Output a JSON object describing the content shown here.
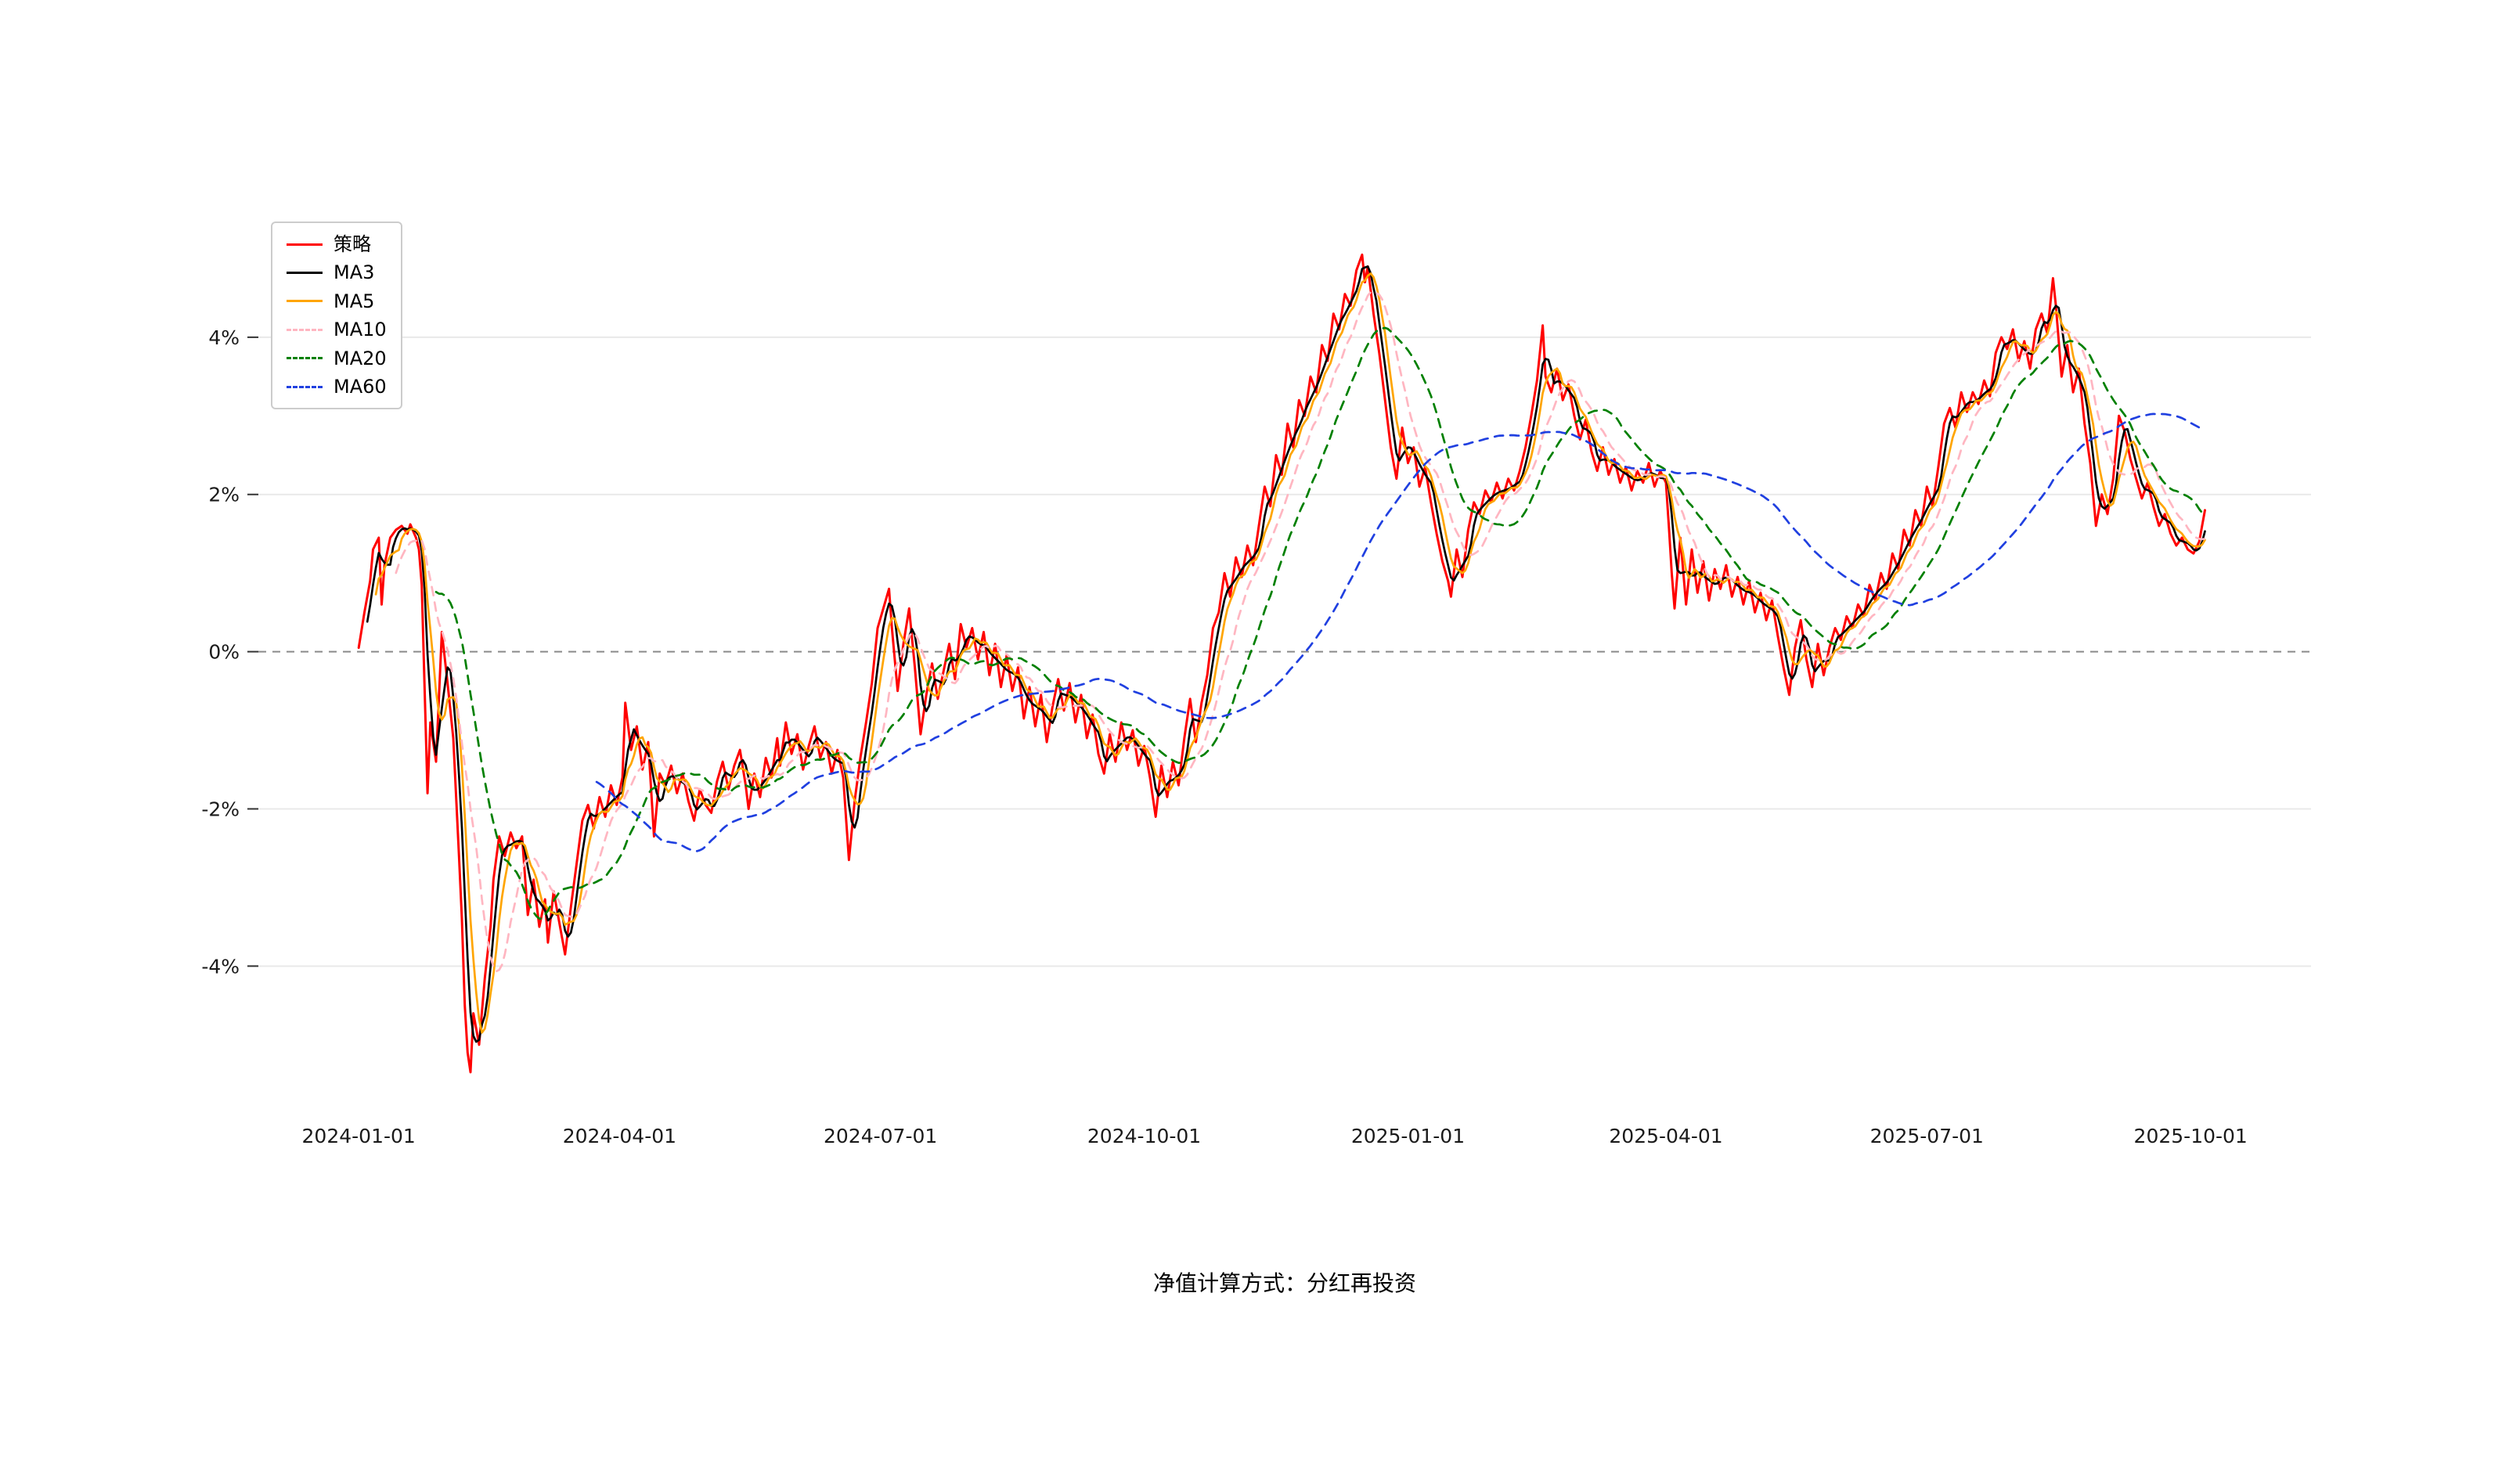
{
  "page": {
    "background": "#ffffff",
    "caption": "净值计算方式：分红再投资"
  },
  "chart_data": {
    "type": "line",
    "title": "",
    "xlabel": "",
    "ylabel": "",
    "grid": "horizontal-only",
    "legend_position": "upper-left",
    "grid_color": "#e9e9e9",
    "zero_line": {
      "value": 0,
      "style": "dashed",
      "color": "#8a8a8a"
    },
    "x_unit": "days since 2024-01-01",
    "xlim": [
      -35,
      681
    ],
    "ylim": [
      -5.55,
      6.0
    ],
    "x_ticks": [
      {
        "day": 0,
        "label": "2024-01-01"
      },
      {
        "day": 91,
        "label": "2024-04-01"
      },
      {
        "day": 182,
        "label": "2024-07-01"
      },
      {
        "day": 274,
        "label": "2024-10-01"
      },
      {
        "day": 366,
        "label": "2025-01-01"
      },
      {
        "day": 456,
        "label": "2025-04-01"
      },
      {
        "day": 547,
        "label": "2025-07-01"
      },
      {
        "day": 639,
        "label": "2025-10-01"
      }
    ],
    "y_ticks": [
      {
        "value": -4,
        "label": "-4%"
      },
      {
        "value": -2,
        "label": "-2%"
      },
      {
        "value": 0,
        "label": "0%"
      },
      {
        "value": 2,
        "label": "2%"
      },
      {
        "value": 4,
        "label": "4%"
      }
    ],
    "series": [
      {
        "name": "策略",
        "color": "#ff0000",
        "dash": "solid",
        "kind": "raw"
      },
      {
        "name": "MA3",
        "color": "#000000",
        "dash": "solid",
        "kind": "moving_average",
        "window": 3
      },
      {
        "name": "MA5",
        "color": "#ffa500",
        "dash": "solid",
        "kind": "moving_average",
        "window": 5
      },
      {
        "name": "MA10",
        "color": "#ffb6c1",
        "dash": "dashed",
        "kind": "moving_average",
        "window": 10
      },
      {
        "name": "MA20",
        "color": "#008000",
        "dash": "dashed",
        "kind": "moving_average",
        "window": 20
      },
      {
        "name": "MA60",
        "color": "#2040e0",
        "dash": "dashed",
        "kind": "moving_average",
        "window": 60
      }
    ],
    "strategy_points": [
      [
        0,
        0.05
      ],
      [
        2,
        0.5
      ],
      [
        4,
        0.9
      ],
      [
        5,
        1.3
      ],
      [
        7,
        1.45
      ],
      [
        8,
        0.6
      ],
      [
        9,
        1.1
      ],
      [
        11,
        1.45
      ],
      [
        13,
        1.55
      ],
      [
        15,
        1.6
      ],
      [
        17,
        1.5
      ],
      [
        18,
        1.62
      ],
      [
        20,
        1.45
      ],
      [
        21,
        1.3
      ],
      [
        22,
        0.85
      ],
      [
        24,
        -1.8
      ],
      [
        25,
        -0.9
      ],
      [
        27,
        -1.4
      ],
      [
        29,
        0.25
      ],
      [
        31,
        -0.4
      ],
      [
        33,
        -1.1
      ],
      [
        35,
        -2.6
      ],
      [
        36,
        -3.4
      ],
      [
        37,
        -4.5
      ],
      [
        38,
        -5.1
      ],
      [
        39,
        -5.35
      ],
      [
        40,
        -4.6
      ],
      [
        42,
        -5.0
      ],
      [
        44,
        -4.15
      ],
      [
        46,
        -3.5
      ],
      [
        47,
        -2.9
      ],
      [
        49,
        -2.35
      ],
      [
        51,
        -2.6
      ],
      [
        53,
        -2.3
      ],
      [
        55,
        -2.5
      ],
      [
        57,
        -2.35
      ],
      [
        59,
        -3.35
      ],
      [
        61,
        -2.9
      ],
      [
        63,
        -3.5
      ],
      [
        65,
        -3.15
      ],
      [
        66,
        -3.7
      ],
      [
        68,
        -3.05
      ],
      [
        70,
        -3.45
      ],
      [
        72,
        -3.85
      ],
      [
        74,
        -3.25
      ],
      [
        76,
        -2.7
      ],
      [
        78,
        -2.15
      ],
      [
        80,
        -1.95
      ],
      [
        82,
        -2.25
      ],
      [
        84,
        -1.85
      ],
      [
        86,
        -2.1
      ],
      [
        88,
        -1.7
      ],
      [
        90,
        -1.95
      ],
      [
        92,
        -1.6
      ],
      [
        93,
        -0.65
      ],
      [
        95,
        -1.25
      ],
      [
        97,
        -0.95
      ],
      [
        99,
        -1.5
      ],
      [
        101,
        -1.15
      ],
      [
        103,
        -2.35
      ],
      [
        105,
        -1.55
      ],
      [
        107,
        -1.7
      ],
      [
        109,
        -1.45
      ],
      [
        111,
        -1.8
      ],
      [
        113,
        -1.55
      ],
      [
        115,
        -1.9
      ],
      [
        117,
        -2.15
      ],
      [
        119,
        -1.75
      ],
      [
        121,
        -1.95
      ],
      [
        123,
        -2.05
      ],
      [
        125,
        -1.65
      ],
      [
        127,
        -1.4
      ],
      [
        129,
        -1.75
      ],
      [
        131,
        -1.45
      ],
      [
        133,
        -1.25
      ],
      [
        135,
        -1.7
      ],
      [
        136,
        -2.0
      ],
      [
        138,
        -1.55
      ],
      [
        140,
        -1.85
      ],
      [
        142,
        -1.35
      ],
      [
        144,
        -1.6
      ],
      [
        146,
        -1.1
      ],
      [
        147,
        -1.45
      ],
      [
        149,
        -0.9
      ],
      [
        151,
        -1.3
      ],
      [
        153,
        -1.05
      ],
      [
        155,
        -1.5
      ],
      [
        157,
        -1.2
      ],
      [
        159,
        -0.95
      ],
      [
        161,
        -1.35
      ],
      [
        163,
        -1.15
      ],
      [
        165,
        -1.55
      ],
      [
        167,
        -1.25
      ],
      [
        169,
        -1.6
      ],
      [
        171,
        -2.65
      ],
      [
        173,
        -1.9
      ],
      [
        175,
        -1.35
      ],
      [
        177,
        -0.9
      ],
      [
        179,
        -0.4
      ],
      [
        181,
        0.3
      ],
      [
        183,
        0.55
      ],
      [
        185,
        0.8
      ],
      [
        186,
        0.3
      ],
      [
        188,
        -0.5
      ],
      [
        190,
        0.1
      ],
      [
        192,
        0.55
      ],
      [
        194,
        -0.2
      ],
      [
        196,
        -1.05
      ],
      [
        198,
        -0.55
      ],
      [
        200,
        -0.15
      ],
      [
        202,
        -0.6
      ],
      [
        204,
        -0.25
      ],
      [
        206,
        0.1
      ],
      [
        208,
        -0.35
      ],
      [
        210,
        0.35
      ],
      [
        212,
        0.05
      ],
      [
        214,
        0.3
      ],
      [
        216,
        -0.1
      ],
      [
        218,
        0.25
      ],
      [
        220,
        -0.3
      ],
      [
        222,
        0.1
      ],
      [
        224,
        -0.45
      ],
      [
        226,
        -0.05
      ],
      [
        228,
        -0.5
      ],
      [
        230,
        -0.2
      ],
      [
        232,
        -0.85
      ],
      [
        234,
        -0.45
      ],
      [
        236,
        -0.95
      ],
      [
        238,
        -0.55
      ],
      [
        240,
        -1.15
      ],
      [
        242,
        -0.7
      ],
      [
        244,
        -0.35
      ],
      [
        246,
        -0.75
      ],
      [
        248,
        -0.4
      ],
      [
        250,
        -0.9
      ],
      [
        252,
        -0.55
      ],
      [
        254,
        -1.1
      ],
      [
        256,
        -0.8
      ],
      [
        258,
        -1.3
      ],
      [
        260,
        -1.55
      ],
      [
        262,
        -1.05
      ],
      [
        264,
        -1.4
      ],
      [
        266,
        -0.9
      ],
      [
        268,
        -1.25
      ],
      [
        270,
        -1.0
      ],
      [
        272,
        -1.45
      ],
      [
        274,
        -1.2
      ],
      [
        276,
        -1.6
      ],
      [
        278,
        -2.1
      ],
      [
        280,
        -1.45
      ],
      [
        282,
        -1.85
      ],
      [
        284,
        -1.4
      ],
      [
        286,
        -1.7
      ],
      [
        288,
        -1.1
      ],
      [
        290,
        -0.6
      ],
      [
        292,
        -1.15
      ],
      [
        294,
        -0.65
      ],
      [
        296,
        -0.3
      ],
      [
        298,
        0.3
      ],
      [
        300,
        0.5
      ],
      [
        302,
        1.0
      ],
      [
        304,
        0.7
      ],
      [
        306,
        1.2
      ],
      [
        308,
        0.95
      ],
      [
        310,
        1.35
      ],
      [
        312,
        1.1
      ],
      [
        314,
        1.6
      ],
      [
        316,
        2.1
      ],
      [
        318,
        1.85
      ],
      [
        320,
        2.5
      ],
      [
        322,
        2.25
      ],
      [
        324,
        2.9
      ],
      [
        326,
        2.6
      ],
      [
        328,
        3.2
      ],
      [
        330,
        3.0
      ],
      [
        332,
        3.5
      ],
      [
        334,
        3.3
      ],
      [
        336,
        3.9
      ],
      [
        338,
        3.7
      ],
      [
        340,
        4.3
      ],
      [
        342,
        4.1
      ],
      [
        344,
        4.55
      ],
      [
        346,
        4.4
      ],
      [
        348,
        4.85
      ],
      [
        350,
        5.05
      ],
      [
        351,
        4.7
      ],
      [
        352,
        4.9
      ],
      [
        354,
        4.3
      ],
      [
        356,
        3.8
      ],
      [
        358,
        3.2
      ],
      [
        360,
        2.6
      ],
      [
        362,
        2.2
      ],
      [
        364,
        2.85
      ],
      [
        366,
        2.4
      ],
      [
        368,
        2.6
      ],
      [
        370,
        2.1
      ],
      [
        372,
        2.35
      ],
      [
        374,
        1.9
      ],
      [
        376,
        1.5
      ],
      [
        378,
        1.15
      ],
      [
        380,
        0.9
      ],
      [
        381,
        0.7
      ],
      [
        383,
        1.3
      ],
      [
        385,
        0.95
      ],
      [
        387,
        1.55
      ],
      [
        389,
        1.9
      ],
      [
        391,
        1.75
      ],
      [
        393,
        2.05
      ],
      [
        395,
        1.9
      ],
      [
        397,
        2.15
      ],
      [
        399,
        1.95
      ],
      [
        401,
        2.2
      ],
      [
        403,
        2.05
      ],
      [
        405,
        2.3
      ],
      [
        407,
        2.6
      ],
      [
        409,
        3.0
      ],
      [
        411,
        3.45
      ],
      [
        413,
        4.15
      ],
      [
        414,
        3.5
      ],
      [
        416,
        3.3
      ],
      [
        418,
        3.6
      ],
      [
        420,
        3.2
      ],
      [
        422,
        3.4
      ],
      [
        424,
        3.0
      ],
      [
        426,
        2.7
      ],
      [
        428,
        2.95
      ],
      [
        430,
        2.55
      ],
      [
        432,
        2.3
      ],
      [
        434,
        2.6
      ],
      [
        436,
        2.25
      ],
      [
        438,
        2.45
      ],
      [
        440,
        2.15
      ],
      [
        442,
        2.35
      ],
      [
        444,
        2.05
      ],
      [
        446,
        2.3
      ],
      [
        448,
        2.15
      ],
      [
        450,
        2.4
      ],
      [
        452,
        2.1
      ],
      [
        454,
        2.3
      ],
      [
        456,
        2.15
      ],
      [
        457,
        1.6
      ],
      [
        458,
        1.0
      ],
      [
        459,
        0.55
      ],
      [
        461,
        1.45
      ],
      [
        463,
        0.6
      ],
      [
        465,
        1.3
      ],
      [
        467,
        0.75
      ],
      [
        469,
        1.15
      ],
      [
        471,
        0.65
      ],
      [
        473,
        1.05
      ],
      [
        475,
        0.8
      ],
      [
        477,
        1.1
      ],
      [
        479,
        0.7
      ],
      [
        481,
        0.95
      ],
      [
        483,
        0.6
      ],
      [
        485,
        0.9
      ],
      [
        487,
        0.5
      ],
      [
        489,
        0.75
      ],
      [
        491,
        0.4
      ],
      [
        493,
        0.65
      ],
      [
        495,
        0.2
      ],
      [
        497,
        -0.2
      ],
      [
        499,
        -0.55
      ],
      [
        501,
        0.05
      ],
      [
        503,
        0.4
      ],
      [
        505,
        -0.1
      ],
      [
        507,
        -0.45
      ],
      [
        509,
        0.1
      ],
      [
        511,
        -0.3
      ],
      [
        513,
        0.05
      ],
      [
        515,
        0.3
      ],
      [
        517,
        0.15
      ],
      [
        519,
        0.45
      ],
      [
        521,
        0.3
      ],
      [
        523,
        0.6
      ],
      [
        525,
        0.45
      ],
      [
        527,
        0.85
      ],
      [
        529,
        0.65
      ],
      [
        531,
        1.0
      ],
      [
        533,
        0.8
      ],
      [
        535,
        1.25
      ],
      [
        537,
        1.05
      ],
      [
        539,
        1.55
      ],
      [
        541,
        1.35
      ],
      [
        543,
        1.8
      ],
      [
        545,
        1.6
      ],
      [
        547,
        2.1
      ],
      [
        549,
        1.85
      ],
      [
        551,
        2.35
      ],
      [
        553,
        2.9
      ],
      [
        555,
        3.1
      ],
      [
        557,
        2.85
      ],
      [
        559,
        3.3
      ],
      [
        561,
        3.05
      ],
      [
        563,
        3.3
      ],
      [
        565,
        3.15
      ],
      [
        567,
        3.45
      ],
      [
        569,
        3.25
      ],
      [
        571,
        3.8
      ],
      [
        573,
        4.0
      ],
      [
        575,
        3.85
      ],
      [
        577,
        4.1
      ],
      [
        579,
        3.7
      ],
      [
        581,
        3.95
      ],
      [
        583,
        3.6
      ],
      [
        585,
        4.1
      ],
      [
        587,
        4.3
      ],
      [
        589,
        4.05
      ],
      [
        591,
        4.75
      ],
      [
        592,
        4.4
      ],
      [
        594,
        3.5
      ],
      [
        596,
        3.9
      ],
      [
        598,
        3.3
      ],
      [
        600,
        3.6
      ],
      [
        602,
        2.9
      ],
      [
        604,
        2.4
      ],
      [
        606,
        1.6
      ],
      [
        608,
        2.0
      ],
      [
        610,
        1.75
      ],
      [
        612,
        2.2
      ],
      [
        614,
        3.0
      ],
      [
        616,
        2.8
      ],
      [
        618,
        2.45
      ],
      [
        620,
        2.2
      ],
      [
        622,
        1.95
      ],
      [
        624,
        2.15
      ],
      [
        626,
        1.85
      ],
      [
        628,
        1.6
      ],
      [
        630,
        1.75
      ],
      [
        632,
        1.5
      ],
      [
        634,
        1.35
      ],
      [
        636,
        1.45
      ],
      [
        638,
        1.3
      ],
      [
        640,
        1.25
      ],
      [
        642,
        1.4
      ],
      [
        644,
        1.8
      ]
    ]
  }
}
